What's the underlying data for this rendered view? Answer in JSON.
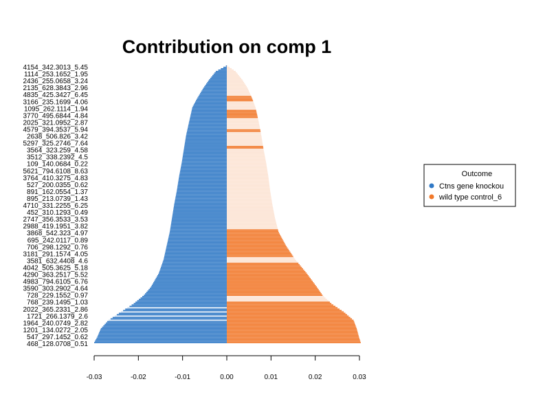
{
  "chart_data": {
    "type": "bar",
    "orientation": "horizontal",
    "title": "Contribution on comp 1",
    "xlabel": "",
    "ylabel": "",
    "xlim": [
      -0.03,
      0.03
    ],
    "x_ticks": [
      -0.03,
      -0.02,
      -0.01,
      0.0,
      0.01,
      0.02,
      0.03
    ],
    "x_tick_labels": [
      "-0.03",
      "-0.02",
      "-0.01",
      "0.00",
      "0.01",
      "0.02",
      "0.03"
    ],
    "grid": false,
    "legend": {
      "title": "Outcome",
      "position": "right",
      "entries": [
        {
          "label": "Ctns gene knockou",
          "color": "#3079C6"
        },
        {
          "label": "wild type control_6",
          "color": "#F1782A"
        }
      ]
    },
    "colors": {
      "negative": "#3079C6",
      "positive": "#F1782A",
      "negative_light": "#C9DCF0",
      "positive_light": "#FCE3D3"
    },
    "labels": [
      "4154_342.3013_5.45",
      "1114_253.1652_1.95",
      "2436_255.0658_3.24",
      "2135_628.3843_2.96",
      "4835_425.3427_6.45",
      "3166_235.1699_4.06",
      "1095_262.1114_1.94",
      "3770_495.6844_4.84",
      "2025_321.0952_2.87",
      "4579_394.3537_5.94",
      "2638_506.826_3.42",
      "5297_325.2746_7.64",
      "3564_323.259_4.58",
      "3512_338.2392_4.5",
      "109_140.0684_0.22",
      "5621_794.6108_8.63",
      "3764_410.3275_4.83",
      "527_200.0355_0.62",
      "891_162.0554_1.37",
      "895_213.0739_1.43",
      "4710_331.2255_6.25",
      "452_310.1293_0.49",
      "2747_356.3533_3.53",
      "2988_419.1951_3.82",
      "3868_542.323_4.97",
      "695_242.0117_0.89",
      "706_298.1292_0.76",
      "3181_291.1574_4.05",
      "3581_632.4408_4.6",
      "4042_505.3625_5.18",
      "4290_363.2517_5.52",
      "4983_794.6105_6.76",
      "3590_303.2902_4.64",
      "728_229.1552_0.97",
      "768_239.1495_1.03",
      "2022_365.2331_2.86",
      "1721_266.1379_2.6",
      "1964_240.0749_2.82",
      "1201_134.0272_2.05",
      "547_297.1452_0.62",
      "468_128.0708_0.51"
    ],
    "n_features": 200,
    "envelope": {
      "negative_magnitude": [
        [
          0.0,
          0.0002
        ],
        [
          0.02,
          0.0025
        ],
        [
          0.05,
          0.004
        ],
        [
          0.08,
          0.0053
        ],
        [
          0.12,
          0.0068
        ],
        [
          0.15,
          0.0078
        ],
        [
          0.2,
          0.0085
        ],
        [
          0.25,
          0.0092
        ],
        [
          0.3,
          0.0097
        ],
        [
          0.35,
          0.0102
        ],
        [
          0.4,
          0.0108
        ],
        [
          0.45,
          0.0113
        ],
        [
          0.5,
          0.0119
        ],
        [
          0.55,
          0.0124
        ],
        [
          0.6,
          0.0129
        ],
        [
          0.65,
          0.0136
        ],
        [
          0.7,
          0.0143
        ],
        [
          0.75,
          0.0154
        ],
        [
          0.8,
          0.0172
        ],
        [
          0.83,
          0.0188
        ],
        [
          0.86,
          0.0211
        ],
        [
          0.89,
          0.024
        ],
        [
          0.92,
          0.0268
        ],
        [
          0.95,
          0.0285
        ],
        [
          0.98,
          0.0293
        ],
        [
          1.0,
          0.03
        ]
      ],
      "positive_magnitude": [
        [
          0.0,
          0.0002
        ],
        [
          0.02,
          0.002
        ],
        [
          0.05,
          0.0035
        ],
        [
          0.08,
          0.0047
        ],
        [
          0.12,
          0.0058
        ],
        [
          0.15,
          0.0065
        ],
        [
          0.2,
          0.0072
        ],
        [
          0.25,
          0.0078
        ],
        [
          0.3,
          0.0083
        ],
        [
          0.35,
          0.0089
        ],
        [
          0.4,
          0.0094
        ],
        [
          0.45,
          0.0098
        ],
        [
          0.5,
          0.0103
        ],
        [
          0.55,
          0.0109
        ],
        [
          0.6,
          0.0117
        ],
        [
          0.65,
          0.0134
        ],
        [
          0.7,
          0.0155
        ],
        [
          0.75,
          0.0181
        ],
        [
          0.8,
          0.0204
        ],
        [
          0.83,
          0.0217
        ],
        [
          0.86,
          0.0237
        ],
        [
          0.89,
          0.0265
        ],
        [
          0.92,
          0.0287
        ],
        [
          0.95,
          0.0294
        ],
        [
          0.98,
          0.0299
        ],
        [
          1.0,
          0.0303
        ]
      ],
      "dark_positive_bands": [
        [
          0.11,
          0.13
        ],
        [
          0.16,
          0.19
        ],
        [
          0.23,
          0.24
        ],
        [
          0.29,
          0.3
        ],
        [
          0.59,
          0.69
        ],
        [
          0.71,
          0.83
        ],
        [
          0.85,
          1.0
        ]
      ],
      "light_negative_bands": [
        [
          0.86,
          0.93
        ]
      ]
    }
  }
}
